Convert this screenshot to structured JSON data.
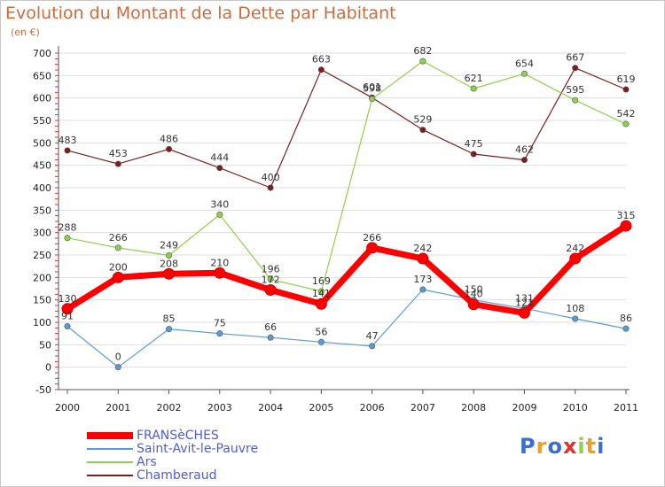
{
  "chart_data": {
    "type": "line",
    "title": "Evolution du Montant de la Dette par Habitant",
    "subtitle": "(en €)",
    "categories": [
      "2000",
      "2001",
      "2002",
      "2003",
      "2004",
      "2005",
      "2006",
      "2007",
      "2008",
      "2009",
      "2010",
      "2011"
    ],
    "ylim": [
      -50,
      700
    ],
    "yticks": [
      -50,
      0,
      50,
      100,
      150,
      200,
      250,
      300,
      350,
      400,
      450,
      500,
      550,
      600,
      650,
      700
    ],
    "grid": "horizontal",
    "legend_position": "bottom-left",
    "series": [
      {
        "name": "FRANSèCHES",
        "color": "#ff0000",
        "values": [
          130,
          200,
          208,
          210,
          172,
          141,
          266,
          242,
          140,
          121,
          242,
          315
        ]
      },
      {
        "name": "Saint-Avit-le-Pauvre",
        "color": "#5b9bd5",
        "values": [
          91,
          0,
          85,
          75,
          66,
          56,
          47,
          173,
          150,
          131,
          108,
          86
        ]
      },
      {
        "name": "Ars",
        "color": "#8ed14b",
        "values": [
          288,
          266,
          249,
          340,
          196,
          169,
          598,
          682,
          621,
          654,
          595,
          542
        ]
      },
      {
        "name": "Chamberaud",
        "color": "#7a1f1f",
        "values": [
          483,
          453,
          486,
          444,
          400,
          663,
          601,
          529,
          475,
          462,
          667,
          619
        ]
      }
    ]
  },
  "logo": {
    "letters": [
      {
        "ch": "P",
        "color": "#3a6fd6"
      },
      {
        "ch": "r",
        "color": "#f0a020"
      },
      {
        "ch": "o",
        "color": "#3a6fd6"
      },
      {
        "ch": "x",
        "color": "#e53030"
      },
      {
        "ch": "i",
        "color": "#8ed14b"
      },
      {
        "ch": "t",
        "color": "#f0a020"
      },
      {
        "ch": "i",
        "color": "#3a6fd6"
      }
    ]
  }
}
